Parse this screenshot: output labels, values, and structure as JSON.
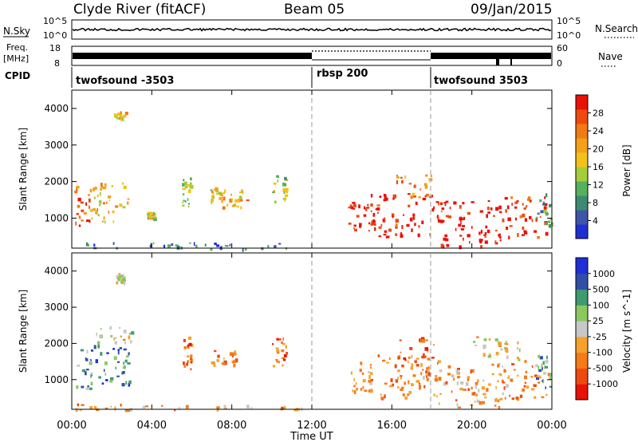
{
  "header": {
    "station": "Clyde River (fitACF)",
    "beam": "Beam 05",
    "date": "09/Jan/2015"
  },
  "top_panels": {
    "nsky_label": "N.Sky",
    "nsky_ticks": [
      "10^5",
      "10^0"
    ],
    "nsearch_label": "N.Search",
    "nsearch_ticks": [
      "10^5",
      "10^0"
    ],
    "freq_label": "Freq.",
    "freq_unit": "[MHz]",
    "freq_ticks": [
      "18",
      "8"
    ],
    "nave_label": "Nave",
    "nave_ticks": [
      "60",
      "0"
    ],
    "cpid_label": "CPID",
    "cpid_segments": [
      {
        "label": "twofsound -3503",
        "start_h": 0,
        "end_h": 12
      },
      {
        "label": "rbsp 200",
        "start_h": 12,
        "end_h": 18
      },
      {
        "label": "twofsound 3503",
        "start_h": 18,
        "end_h": 24
      }
    ]
  },
  "chart_data": [
    {
      "type": "heatmap",
      "title": "",
      "ylabel": "Slant Range [km]",
      "xlabel": "",
      "x_range_h": [
        0,
        24
      ],
      "ylim": [
        180,
        4500
      ],
      "yticks": [
        "1000",
        "2000",
        "3000",
        "4000"
      ],
      "colorbar": {
        "label": "Power [dB]",
        "ticks": [
          "28",
          "24",
          "20",
          "16",
          "12",
          "8",
          "4"
        ],
        "range": [
          0,
          30
        ],
        "colors": [
          "#1f2fd6",
          "#3f55a8",
          "#3f8a6e",
          "#55b060",
          "#a5cc3a",
          "#f2c21a",
          "#f5a01a",
          "#f07a14",
          "#ee4a10",
          "#e81208"
        ]
      },
      "echo_regions": [
        {
          "t0": 0.1,
          "t1": 1.0,
          "r0": 700,
          "r1": 1900,
          "level": 0.85
        },
        {
          "t0": 0.9,
          "t1": 2.9,
          "r0": 900,
          "r1": 2000,
          "level": 0.6
        },
        {
          "t0": 2.1,
          "t1": 2.7,
          "r0": 3750,
          "r1": 3950,
          "level": 0.55
        },
        {
          "t0": 3.7,
          "t1": 4.1,
          "r0": 1000,
          "r1": 1200,
          "level": 0.45
        },
        {
          "t0": 5.5,
          "t1": 6.0,
          "r0": 1300,
          "r1": 2200,
          "level": 0.4
        },
        {
          "t0": 6.9,
          "t1": 7.5,
          "r0": 1400,
          "r1": 1900,
          "level": 0.55
        },
        {
          "t0": 7.5,
          "t1": 8.8,
          "r0": 1300,
          "r1": 1800,
          "level": 0.65
        },
        {
          "t0": 10.0,
          "t1": 10.7,
          "r0": 1400,
          "r1": 2200,
          "level": 0.45
        },
        {
          "t0": 13.8,
          "t1": 15.0,
          "r0": 700,
          "r1": 1500,
          "level": 0.95
        },
        {
          "t0": 14.8,
          "t1": 18.5,
          "r0": 500,
          "r1": 1700,
          "level": 0.95
        },
        {
          "t0": 16.2,
          "t1": 18.2,
          "r0": 1600,
          "r1": 2200,
          "level": 0.7
        },
        {
          "t0": 18.3,
          "t1": 21.5,
          "r0": 250,
          "r1": 1500,
          "level": 1.0
        },
        {
          "t0": 21.5,
          "t1": 23.8,
          "r0": 500,
          "r1": 1600,
          "level": 0.9
        },
        {
          "t0": 23.2,
          "t1": 24.0,
          "r0": 800,
          "r1": 1700,
          "level": 0.35
        },
        {
          "t0": 0.0,
          "t1": 11.5,
          "r0": 180,
          "r1": 350,
          "level": 0.2
        }
      ]
    },
    {
      "type": "heatmap",
      "title": "",
      "ylabel": "Slant Range [km]",
      "xlabel": "Time UT",
      "x_range_h": [
        0,
        24
      ],
      "xticks": [
        "00:00",
        "04:00",
        "08:00",
        "12:00",
        "16:00",
        "20:00",
        "00:00"
      ],
      "ylim": [
        180,
        4500
      ],
      "yticks": [
        "1000",
        "2000",
        "3000",
        "4000"
      ],
      "colorbar": {
        "label": "Velocity [m s^-1]",
        "ticks": [
          "1000",
          "500",
          "100",
          "25",
          "-25",
          "-100",
          "-500",
          "-1000"
        ],
        "range": [
          -1000,
          1000
        ],
        "colors": [
          "#e81208",
          "#ee4a10",
          "#f57a18",
          "#f5a22a",
          "#c8c8c8",
          "#8cc860",
          "#3f9a70",
          "#2f4fa8",
          "#1f2fd6"
        ]
      },
      "echo_regions": [
        {
          "t0": 0.1,
          "t1": 1.0,
          "r0": 700,
          "r1": 1900,
          "level": 0.7
        },
        {
          "t0": 0.9,
          "t1": 2.9,
          "r0": 900,
          "r1": 2000,
          "level": 0.78
        },
        {
          "t0": 1.2,
          "t1": 3.0,
          "r0": 2000,
          "r1": 2500,
          "level": 0.5
        },
        {
          "t0": 2.2,
          "t1": 2.6,
          "r0": 3700,
          "r1": 3950,
          "level": 0.5
        },
        {
          "t0": 5.5,
          "t1": 6.0,
          "r0": 1300,
          "r1": 2200,
          "level": 0.25
        },
        {
          "t0": 6.9,
          "t1": 8.8,
          "r0": 1350,
          "r1": 1900,
          "level": 0.28
        },
        {
          "t0": 10.0,
          "t1": 10.7,
          "r0": 1400,
          "r1": 2200,
          "level": 0.25
        },
        {
          "t0": 13.8,
          "t1": 15.0,
          "r0": 700,
          "r1": 1500,
          "level": 0.3
        },
        {
          "t0": 14.8,
          "t1": 18.5,
          "r0": 500,
          "r1": 1700,
          "level": 0.3
        },
        {
          "t0": 16.2,
          "t1": 18.2,
          "r0": 1600,
          "r1": 2200,
          "level": 0.2
        },
        {
          "t0": 18.3,
          "t1": 21.5,
          "r0": 250,
          "r1": 1500,
          "level": 0.35
        },
        {
          "t0": 20.0,
          "t1": 22.5,
          "r0": 1500,
          "r1": 2200,
          "level": 0.48
        },
        {
          "t0": 21.5,
          "t1": 23.8,
          "r0": 500,
          "r1": 1600,
          "level": 0.32
        },
        {
          "t0": 23.2,
          "t1": 24.0,
          "r0": 800,
          "r1": 1700,
          "level": 0.72
        },
        {
          "t0": 0.0,
          "t1": 11.5,
          "r0": 180,
          "r1": 350,
          "level": 0.35
        }
      ]
    }
  ]
}
